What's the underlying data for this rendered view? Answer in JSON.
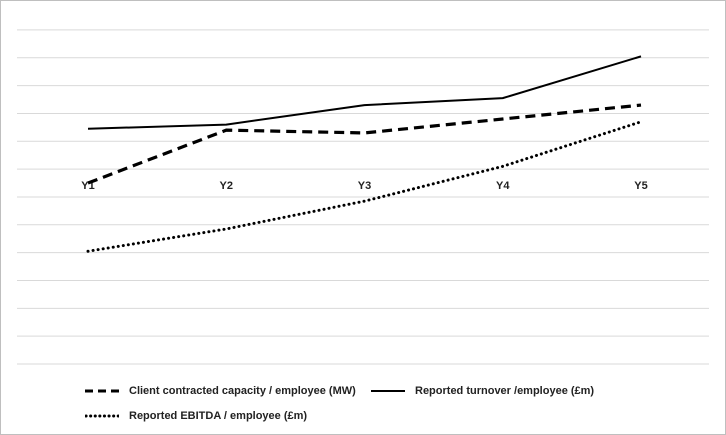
{
  "chart_data": {
    "type": "line",
    "categories": [
      "Y1",
      "Y2",
      "Y3",
      "Y4",
      "Y5"
    ],
    "series": [
      {
        "name": "Client contracted capacity / employee (MW)",
        "style": "dashed",
        "values": [
          -0.5,
          1.4,
          1.3,
          1.8,
          2.3
        ]
      },
      {
        "name": "Reported turnover /employee (£m)",
        "style": "solid",
        "values": [
          1.45,
          1.6,
          2.3,
          2.55,
          4.05
        ]
      },
      {
        "name": "Reported EBITDA / employee (£m)",
        "style": "dotted",
        "values": [
          -2.95,
          -2.15,
          -1.15,
          0.1,
          1.7
        ]
      }
    ],
    "ylim": [
      -7.0,
      5.5
    ],
    "grid": true,
    "legend": "bottom",
    "colors": {
      "line": "#000000",
      "grid": "#d9d9d9",
      "border": "#bfbfbf"
    }
  }
}
